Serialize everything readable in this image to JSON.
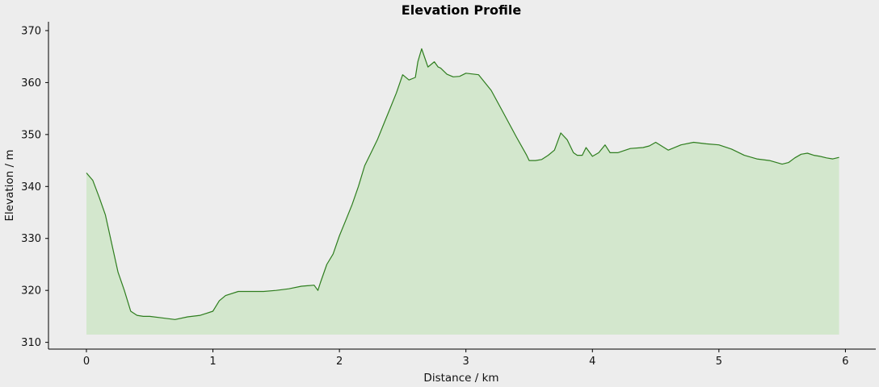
{
  "chart_data": {
    "type": "area",
    "title": "Elevation Profile",
    "xlabel": "Distance / km",
    "ylabel": "Elevation / m",
    "xlim": [
      -0.3,
      6.24
    ],
    "ylim": [
      308.7,
      371.7
    ],
    "area_base": 311.5,
    "xticks": [
      0,
      1,
      2,
      3,
      4,
      5,
      6
    ],
    "yticks": [
      310,
      320,
      330,
      340,
      350,
      360,
      370
    ],
    "xtick_labels": [
      "0",
      "1",
      "2",
      "3",
      "4",
      "5",
      "6"
    ],
    "ytick_labels": [
      "310",
      "320",
      "330",
      "340",
      "350",
      "360",
      "370"
    ],
    "grid": false,
    "series": [
      {
        "line_color": "#2e7d1e",
        "fill_color": "#d3e7cd",
        "x": [
          0.0,
          0.05,
          0.1,
          0.15,
          0.2,
          0.25,
          0.3,
          0.35,
          0.4,
          0.45,
          0.5,
          0.6,
          0.7,
          0.8,
          0.9,
          1.0,
          1.05,
          1.1,
          1.2,
          1.3,
          1.4,
          1.5,
          1.6,
          1.7,
          1.8,
          1.83,
          1.85,
          1.9,
          1.95,
          2.0,
          2.05,
          2.1,
          2.15,
          2.2,
          2.25,
          2.3,
          2.35,
          2.4,
          2.45,
          2.5,
          2.55,
          2.6,
          2.62,
          2.65,
          2.7,
          2.75,
          2.78,
          2.8,
          2.85,
          2.9,
          2.95,
          3.0,
          3.1,
          3.2,
          3.3,
          3.4,
          3.48,
          3.5,
          3.55,
          3.6,
          3.65,
          3.7,
          3.75,
          3.8,
          3.85,
          3.88,
          3.92,
          3.95,
          4.0,
          4.05,
          4.1,
          4.14,
          4.18,
          4.2,
          4.3,
          4.4,
          4.45,
          4.5,
          4.6,
          4.7,
          4.8,
          4.9,
          5.0,
          5.1,
          5.2,
          5.3,
          5.4,
          5.5,
          5.55,
          5.6,
          5.65,
          5.7,
          5.75,
          5.8,
          5.85,
          5.9,
          5.95
        ],
        "y": [
          342.6,
          341.2,
          338.0,
          334.5,
          329.0,
          323.5,
          320.0,
          316.0,
          315.2,
          315.0,
          315.0,
          314.7,
          314.4,
          314.9,
          315.2,
          316.0,
          318.0,
          319.0,
          319.8,
          319.8,
          319.8,
          320.0,
          320.3,
          320.8,
          321.0,
          320.0,
          321.5,
          325.0,
          327.0,
          330.5,
          333.5,
          336.5,
          340.0,
          344.0,
          346.5,
          349.0,
          352.0,
          355.0,
          358.0,
          361.5,
          360.5,
          361.0,
          364.0,
          366.5,
          363.0,
          364.0,
          363.0,
          362.8,
          361.6,
          361.1,
          361.2,
          361.8,
          361.5,
          358.5,
          354.0,
          349.5,
          346.0,
          345.0,
          345.0,
          345.2,
          346.0,
          347.0,
          350.3,
          349.0,
          346.5,
          346.0,
          346.0,
          347.5,
          345.8,
          346.5,
          348.0,
          346.5,
          346.5,
          346.5,
          347.3,
          347.5,
          347.8,
          348.5,
          347.0,
          348.0,
          348.5,
          348.2,
          348.0,
          347.2,
          346.0,
          345.3,
          345.0,
          344.3,
          344.6,
          345.5,
          346.2,
          346.4,
          346.0,
          345.8,
          345.5,
          345.3,
          345.6
        ]
      }
    ]
  }
}
